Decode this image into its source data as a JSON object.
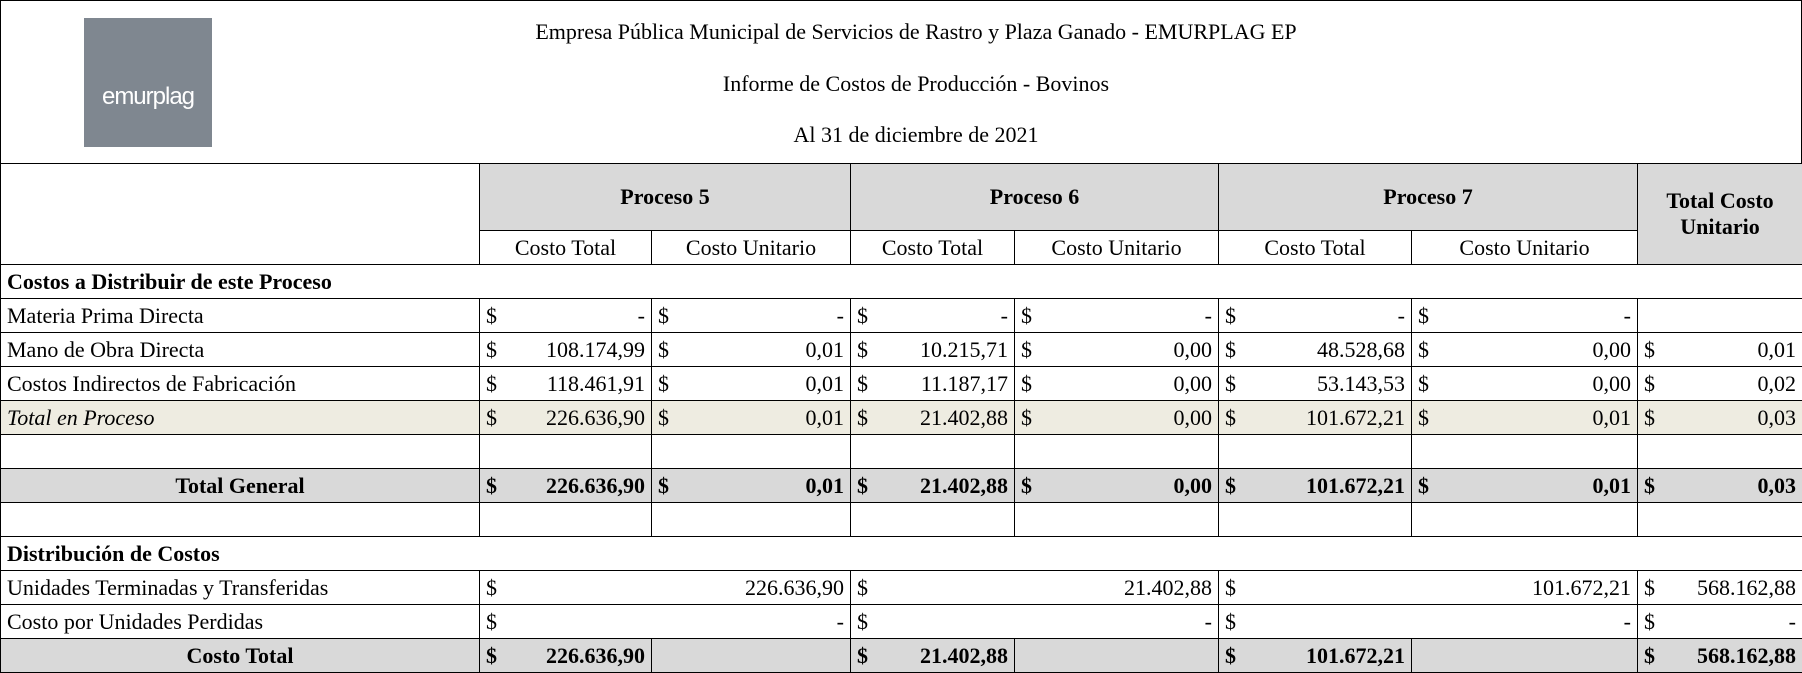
{
  "header": {
    "logo_text": "emurplag",
    "lines": [
      "Empresa Pública Municipal de Servicios de Rastro y Plaza Ganado - EMURPLAG EP",
      "Informe de Costos de Producción - Bovinos",
      "Al 31 de diciembre de 2021"
    ]
  },
  "table": {
    "groups": [
      "Proceso 5",
      "Proceso 6",
      "Proceso 7"
    ],
    "total_header": "Total Costo Unitario",
    "subheaders": [
      "Costo Total",
      "Costo Unitario",
      "Costo Total",
      "Costo Unitario",
      "Costo Total",
      "Costo Unitario"
    ],
    "currency": "$",
    "rows": [
      {
        "kind": "section",
        "label": "Costos a Distribuir de este Proceso"
      },
      {
        "kind": "detail",
        "label": "Materia Prima Directa",
        "cells": [
          "-",
          "-",
          "-",
          "-",
          "-",
          "-",
          null
        ]
      },
      {
        "kind": "detail",
        "label": "Mano de Obra Directa",
        "cells": [
          "108.174,99",
          "0,01",
          "10.215,71",
          "0,00",
          "48.528,68",
          "0,00",
          "0,01"
        ]
      },
      {
        "kind": "detail",
        "label": "Costos Indirectos de Fabricación",
        "cells": [
          "118.461,91",
          "0,01",
          "11.187,17",
          "0,00",
          "53.143,53",
          "0,00",
          "0,02"
        ]
      },
      {
        "kind": "detail",
        "style": "subtotal",
        "label": "Total en Proceso",
        "cells": [
          "226.636,90",
          "0,01",
          "21.402,88",
          "0,00",
          "101.672,21",
          "0,01",
          "0,03"
        ]
      },
      {
        "kind": "blank"
      },
      {
        "kind": "detail",
        "style": "total",
        "label": "Total General",
        "cells": [
          "226.636,90",
          "0,01",
          "21.402,88",
          "0,00",
          "101.672,21",
          "0,01",
          "0,03"
        ]
      },
      {
        "kind": "blank"
      },
      {
        "kind": "section",
        "label": "Distribución de Costos"
      },
      {
        "kind": "merged",
        "label": "Unidades Terminadas y Transferidas",
        "cells": [
          "226.636,90",
          "21.402,88",
          "101.672,21",
          "568.162,88"
        ]
      },
      {
        "kind": "merged",
        "label": "Costo por Unidades Perdidas",
        "cells": [
          "-",
          "-",
          "-",
          "-"
        ]
      },
      {
        "kind": "detail",
        "style": "total",
        "label": "Costo Total",
        "cells": [
          "226.636,90",
          null,
          "21.402,88",
          null,
          "101.672,21",
          null,
          "568.162,88"
        ]
      }
    ]
  }
}
